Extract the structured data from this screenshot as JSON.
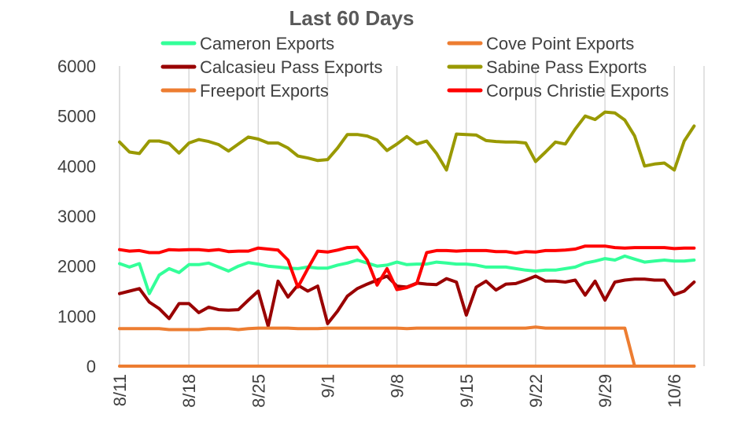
{
  "chart_data": {
    "type": "line",
    "title": "Last 60 Days",
    "xlabel": "",
    "ylabel": "",
    "ylim": [
      0,
      6000
    ],
    "yticks": [
      0,
      1000,
      2000,
      3000,
      4000,
      5000,
      6000
    ],
    "grid": "vertical",
    "legend_position": "top",
    "x_tick_labels": [
      "8/11",
      "8/18",
      "8/25",
      "9/1",
      "9/8",
      "9/15",
      "9/22",
      "9/29",
      "10/6"
    ],
    "x_tick_days": [
      0,
      7,
      14,
      21,
      28,
      35,
      42,
      49,
      56
    ],
    "x_days": [
      0,
      1,
      2,
      3,
      4,
      5,
      6,
      7,
      8,
      9,
      10,
      11,
      12,
      13,
      14,
      15,
      16,
      17,
      18,
      19,
      20,
      21,
      22,
      23,
      24,
      25,
      26,
      27,
      28,
      29,
      30,
      31,
      32,
      33,
      34,
      35,
      36,
      37,
      38,
      39,
      40,
      41,
      42,
      43,
      44,
      45,
      46,
      47,
      48,
      49,
      50,
      51,
      52,
      53,
      54,
      55,
      56,
      57,
      58
    ],
    "series": [
      {
        "name": "Cameron Exports",
        "color": "#33ff99",
        "values": [
          2050,
          1980,
          2050,
          1450,
          1820,
          1950,
          1870,
          2030,
          2030,
          2060,
          1980,
          1900,
          2000,
          2070,
          2040,
          2000,
          1980,
          1960,
          1950,
          1980,
          1960,
          1960,
          2020,
          2060,
          2120,
          2060,
          2000,
          2020,
          2080,
          2030,
          2040,
          2040,
          2080,
          2060,
          2040,
          2040,
          2020,
          1980,
          1980,
          1980,
          1950,
          1920,
          1900,
          1920,
          1920,
          1950,
          1980,
          2060,
          2100,
          2150,
          2120,
          2200,
          2140,
          2080,
          2100,
          2120,
          2100,
          2100,
          2120
        ]
      },
      {
        "name": "Cove Point Exports",
        "color": "#ed7d31",
        "values": [
          0,
          0,
          0,
          0,
          0,
          0,
          0,
          0,
          0,
          0,
          0,
          0,
          0,
          0,
          0,
          0,
          0,
          0,
          0,
          0,
          0,
          0,
          0,
          0,
          0,
          0,
          0,
          0,
          0,
          0,
          0,
          0,
          0,
          0,
          0,
          0,
          0,
          0,
          0,
          0,
          0,
          0,
          0,
          0,
          0,
          0,
          0,
          0,
          0,
          0,
          0,
          0,
          0,
          0,
          0,
          0,
          0,
          0,
          0
        ]
      },
      {
        "name": "Calcasieu Pass Exports",
        "color": "#990000",
        "values": [
          1450,
          1500,
          1550,
          1280,
          1150,
          950,
          1250,
          1250,
          1070,
          1180,
          1130,
          1120,
          1130,
          1320,
          1500,
          800,
          1700,
          1380,
          1620,
          1500,
          1600,
          850,
          1100,
          1400,
          1550,
          1640,
          1720,
          1800,
          1600,
          1580,
          1660,
          1640,
          1630,
          1750,
          1680,
          1020,
          1580,
          1700,
          1520,
          1640,
          1650,
          1720,
          1800,
          1700,
          1700,
          1680,
          1720,
          1420,
          1700,
          1320,
          1680,
          1720,
          1740,
          1740,
          1720,
          1720,
          1430,
          1500,
          1680
        ]
      },
      {
        "name": "Sabine Pass Exports",
        "color": "#999900",
        "values": [
          4480,
          4280,
          4250,
          4500,
          4500,
          4450,
          4260,
          4460,
          4530,
          4490,
          4430,
          4300,
          4440,
          4580,
          4540,
          4460,
          4460,
          4360,
          4200,
          4160,
          4110,
          4130,
          4360,
          4630,
          4630,
          4600,
          4520,
          4310,
          4440,
          4590,
          4440,
          4500,
          4250,
          3920,
          4640,
          4630,
          4620,
          4510,
          4490,
          4480,
          4480,
          4460,
          4090,
          4280,
          4480,
          4440,
          4740,
          5000,
          4930,
          5080,
          5060,
          4920,
          4600,
          4000,
          4040,
          4060,
          3920,
          4500,
          4800
        ]
      },
      {
        "name": "Freeport Exports",
        "color": "#ed7d31",
        "values": [
          750,
          750,
          750,
          750,
          750,
          730,
          730,
          730,
          730,
          750,
          750,
          750,
          730,
          750,
          760,
          760,
          760,
          760,
          750,
          750,
          750,
          760,
          760,
          760,
          760,
          760,
          760,
          760,
          760,
          750,
          760,
          760,
          760,
          760,
          760,
          760,
          760,
          760,
          760,
          760,
          760,
          760,
          780,
          760,
          760,
          760,
          760,
          760,
          760,
          760,
          760,
          760,
          0,
          0,
          0,
          0,
          0,
          0,
          0
        ]
      },
      {
        "name": "Corpus Christie Exports",
        "color": "#ff0000",
        "values": [
          2330,
          2300,
          2310,
          2270,
          2270,
          2330,
          2320,
          2330,
          2330,
          2310,
          2330,
          2290,
          2300,
          2300,
          2360,
          2340,
          2320,
          2120,
          1580,
          1950,
          2300,
          2280,
          2320,
          2370,
          2380,
          2120,
          1620,
          1950,
          1530,
          1570,
          1650,
          2270,
          2310,
          2310,
          2300,
          2310,
          2310,
          2310,
          2290,
          2290,
          2260,
          2290,
          2280,
          2310,
          2310,
          2320,
          2340,
          2400,
          2400,
          2400,
          2370,
          2360,
          2370,
          2370,
          2370,
          2370,
          2350,
          2360,
          2360
        ]
      }
    ]
  }
}
